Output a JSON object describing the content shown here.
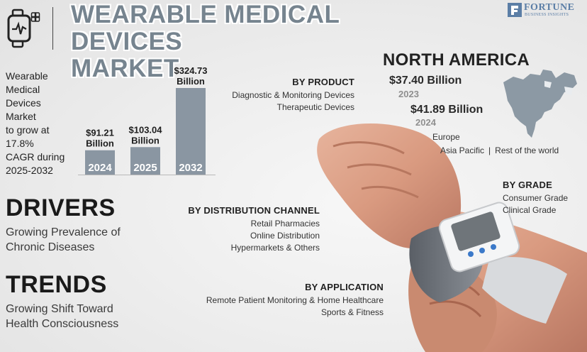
{
  "header": {
    "title_line1": "WEARABLE MEDICAL DEVICES",
    "title_line2": "MARKET",
    "brand_name": "FORTUNE",
    "brand_sub": "BUSINESS INSIGHTS"
  },
  "blurb": {
    "lines": [
      "Wearable",
      "Medical",
      "Devices",
      "Market",
      "to grow at",
      "17.8%",
      "CAGR during",
      "2025-2032"
    ]
  },
  "chart_data": {
    "type": "bar",
    "categories": [
      "2024",
      "2025",
      "2032"
    ],
    "values": [
      91.21,
      103.04,
      324.73
    ],
    "value_labels": [
      "$91.21",
      "$103.04",
      "$324.73"
    ],
    "unit_label": "Billion",
    "title": "",
    "xlabel": "",
    "ylabel": "",
    "bar_color": "#8a96a2"
  },
  "region": {
    "title": "NORTH AMERICA",
    "value_1": "$37.40 Billion",
    "year_1": "2023",
    "value_2": "$41.89 Billion",
    "year_2": "2024",
    "other_1": "Europe",
    "other_2": "Asia Pacific",
    "other_3": "Rest of the world",
    "separator": "|"
  },
  "segments": {
    "product": {
      "title": "BY PRODUCT",
      "items": [
        "Diagnostic & Monitoring Devices",
        "Therapeutic Devices"
      ]
    },
    "distribution": {
      "title": "BY DISTRIBUTION CHANNEL",
      "items": [
        "Retail Pharmacies",
        "Online Distribution",
        "Hypermarkets & Others"
      ]
    },
    "application": {
      "title": "BY APPLICATION",
      "items": [
        "Remote Patient Monitoring & Home Healthcare",
        "Sports & Fitness"
      ]
    },
    "grade": {
      "title": "BY GRADE",
      "items": [
        "Consumer Grade",
        "Clinical Grade"
      ]
    }
  },
  "drivers": {
    "title": "DRIVERS",
    "line1": "Growing Prevalence of",
    "line2": "Chronic Diseases"
  },
  "trends": {
    "title": "TRENDS",
    "line1": "Growing Shift Toward",
    "line2": "Health Consciousness"
  },
  "icons": {
    "header_icon": "smartwatch-health-icon",
    "map_icon": "north-america-map-icon",
    "illustration": "wrist-blood-pressure-monitor"
  },
  "colors": {
    "title": "#76848f",
    "bar": "#8a96a2",
    "brand": "#5b7ea6",
    "map": "#8c99a4"
  }
}
